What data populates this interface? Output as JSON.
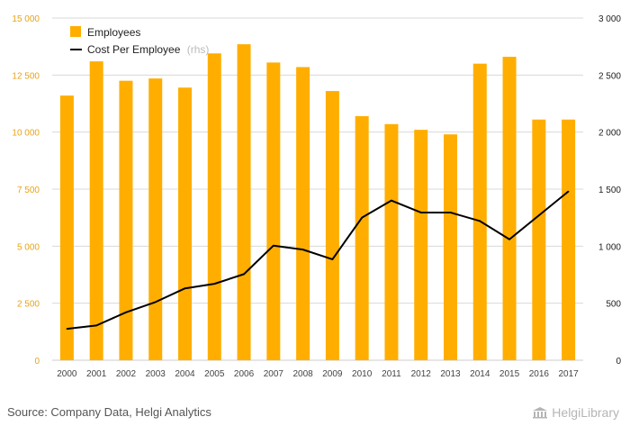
{
  "chart_data": {
    "type": "bar+line",
    "categories": [
      "2000",
      "2001",
      "2002",
      "2003",
      "2004",
      "2005",
      "2006",
      "2007",
      "2008",
      "2009",
      "2010",
      "2011",
      "2012",
      "2013",
      "2014",
      "2015",
      "2016",
      "2017"
    ],
    "series": [
      {
        "name": "Employees",
        "type": "bar",
        "axis": "left",
        "values": [
          11600,
          13100,
          12250,
          12350,
          11950,
          13450,
          13850,
          13050,
          12850,
          11800,
          10700,
          10350,
          10100,
          9900,
          13000,
          13300,
          10550,
          10550
        ]
      },
      {
        "name": "Cost Per Employee",
        "name_suffix": "(rhs)",
        "type": "line",
        "axis": "right",
        "values": [
          275,
          305,
          420,
          510,
          630,
          670,
          755,
          1005,
          970,
          885,
          1250,
          1400,
          1295,
          1295,
          1220,
          1060,
          1270,
          1480
        ]
      }
    ],
    "left_axis": {
      "min": 0,
      "max": 15000,
      "ticks": [
        "0",
        "2 500",
        "5 000",
        "7 500",
        "10 000",
        "12 500",
        "15 000"
      ]
    },
    "right_axis": {
      "min": 0,
      "max": 3000,
      "ticks": [
        "0",
        "500",
        "1 000",
        "1 500",
        "2 000",
        "2 500",
        "3 000"
      ]
    },
    "grid": true,
    "legend_position": "top-left",
    "colors": {
      "bar": "#ffae00",
      "line": "#000000",
      "grid": "#d8d8d8",
      "left_ticks": "#e8a317",
      "rhs_hint": "#bbbbbb"
    }
  },
  "footer": {
    "source": "Source: Company Data, Helgi Analytics",
    "brand": "HelgiLibrary",
    "brand_icon": "library-building-icon"
  }
}
